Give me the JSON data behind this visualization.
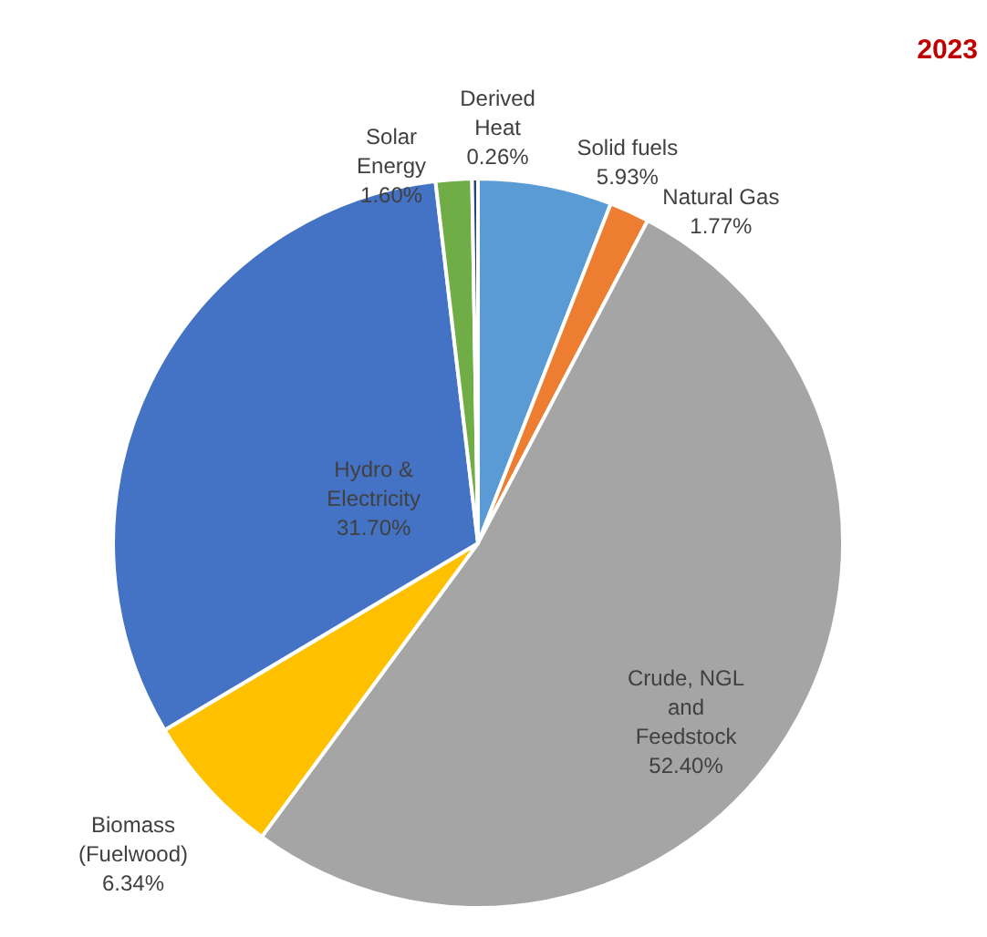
{
  "chart_data": {
    "type": "pie",
    "title": "2023",
    "categories": [
      "Solid fuels",
      "Natural Gas",
      "Crude, NGL and Feedstock",
      "Biomass (Fuelwood)",
      "Hydro & Electricity",
      "Solar Energy",
      "Derived Heat"
    ],
    "values": [
      5.93,
      1.77,
      52.4,
      6.34,
      31.7,
      1.6,
      0.26
    ],
    "colors": [
      "#5b9bd5",
      "#ed7d31",
      "#a5a5a5",
      "#ffc000",
      "#4472c4",
      "#70ad47",
      "#264478"
    ],
    "value_labels": [
      "5.93%",
      "1.77%",
      "52.40%",
      "6.34%",
      "31.70%",
      "1.60%",
      "0.26%"
    ]
  }
}
